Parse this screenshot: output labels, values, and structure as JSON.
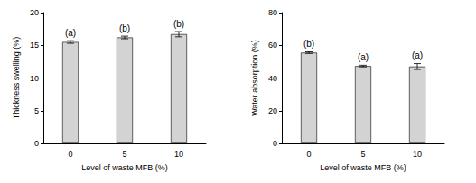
{
  "chart_data": [
    {
      "type": "bar",
      "y_label": "Thickness swelling (%)",
      "x_label": "Level of waste MFB (%)",
      "categories": [
        "0",
        "5",
        "10"
      ],
      "values": [
        15.5,
        16.2,
        16.7
      ],
      "errors": [
        0.2,
        0.2,
        0.4
      ],
      "annotations": [
        "(a)",
        "(b)",
        "(b)"
      ],
      "color": "#d3d3d3",
      "ylim": [
        0,
        20
      ],
      "yticks": [
        0,
        5,
        10,
        15,
        20
      ],
      "grid": false
    },
    {
      "type": "bar",
      "y_label": "Water absorption (%)",
      "x_label": "Level of waste MFB (%)",
      "categories": [
        "0",
        "5",
        "10"
      ],
      "values": [
        55.5,
        47.3,
        47.0
      ],
      "errors": [
        0.5,
        0.5,
        1.8
      ],
      "annotations": [
        "(b)",
        "(a)",
        "(a)"
      ],
      "color": "#d3d3d3",
      "ylim": [
        0,
        80
      ],
      "yticks": [
        0,
        20,
        40,
        60,
        80
      ],
      "grid": false
    }
  ]
}
